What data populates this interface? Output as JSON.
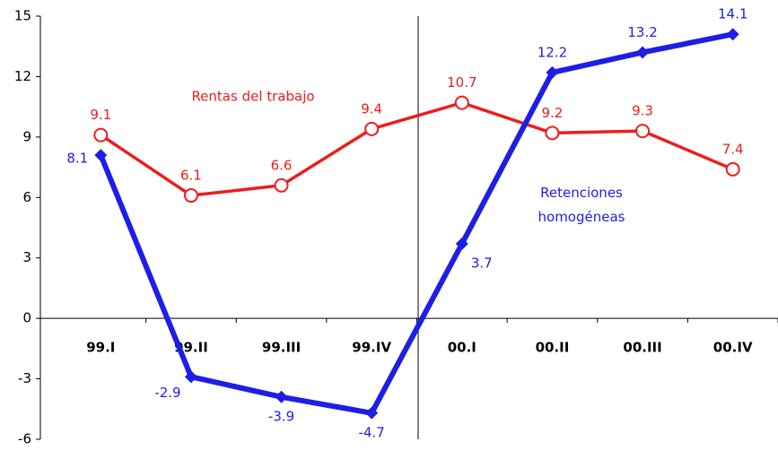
{
  "chart_data": {
    "type": "line",
    "categories": [
      "99.I",
      "99.II",
      "99.III",
      "99.IV",
      "00.I",
      "00.II",
      "00.III",
      "00.IV"
    ],
    "series": [
      {
        "name": "Rentas del trabajo",
        "color": "#ee1c1c",
        "marker": "circle",
        "values": [
          9.1,
          6.1,
          6.6,
          9.4,
          10.7,
          9.2,
          9.3,
          7.4
        ]
      },
      {
        "name": "Retenciones homogéneas",
        "color": "#1e1ee6",
        "marker": "diamond",
        "values": [
          8.1,
          -2.9,
          -3.9,
          -4.7,
          3.7,
          12.2,
          13.2,
          14.1
        ]
      }
    ],
    "ylim": [
      -6,
      15
    ],
    "yticks": [
      -6,
      -3,
      0,
      3,
      6,
      9,
      12,
      15
    ],
    "grid": false
  }
}
